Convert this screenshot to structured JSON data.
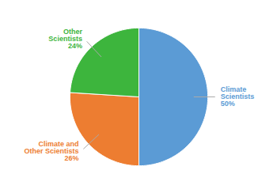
{
  "chart_data": {
    "type": "pie",
    "categories": [
      "Climate\nScientists\n50%",
      "Climate and\nOther Scientists\n26%",
      "Other\nScientists\n24%"
    ],
    "values": [
      50,
      26,
      24
    ],
    "colors": [
      "#5B9BD5",
      "#ED7D31",
      "#3DB53D"
    ]
  }
}
